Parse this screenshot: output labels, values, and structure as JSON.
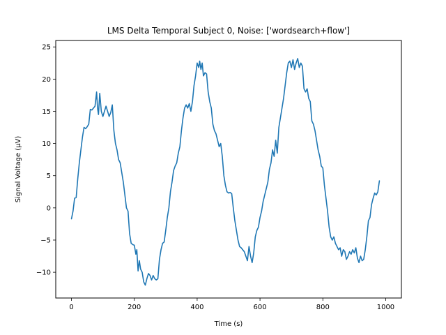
{
  "chart_data": {
    "type": "line",
    "title": "LMS Delta Temporal Subject 0, Noise: ['wordsearch+flow']",
    "xlabel": "Time (s)",
    "ylabel": "Signal Voltage (μV)",
    "xlim": [
      -50,
      1050
    ],
    "ylim": [
      -14,
      26
    ],
    "xticks": [
      0,
      200,
      400,
      600,
      800,
      1000
    ],
    "yticks": [
      -10,
      -5,
      0,
      5,
      10,
      15,
      20,
      25
    ],
    "grid": false,
    "series": [
      {
        "color": "#1f77b4",
        "points": [
          [
            0,
            -1.7
          ],
          [
            5,
            -0.5
          ],
          [
            10,
            1.5
          ],
          [
            15,
            1.6
          ],
          [
            20,
            4.5
          ],
          [
            25,
            7.0
          ],
          [
            30,
            9.0
          ],
          [
            35,
            11.0
          ],
          [
            40,
            12.5
          ],
          [
            45,
            12.3
          ],
          [
            50,
            12.6
          ],
          [
            55,
            13.0
          ],
          [
            60,
            15.3
          ],
          [
            65,
            15.2
          ],
          [
            70,
            15.5
          ],
          [
            75,
            15.8
          ],
          [
            80,
            18.0
          ],
          [
            83,
            15.5
          ],
          [
            86,
            14.5
          ],
          [
            90,
            17.8
          ],
          [
            95,
            15.0
          ],
          [
            100,
            14.2
          ],
          [
            105,
            15.0
          ],
          [
            110,
            15.8
          ],
          [
            115,
            15.0
          ],
          [
            120,
            14.2
          ],
          [
            125,
            14.8
          ],
          [
            130,
            16.0
          ],
          [
            135,
            12.0
          ],
          [
            140,
            10.0
          ],
          [
            145,
            9.0
          ],
          [
            150,
            7.5
          ],
          [
            155,
            7.0
          ],
          [
            160,
            5.5
          ],
          [
            165,
            4.0
          ],
          [
            170,
            2.0
          ],
          [
            175,
            0.0
          ],
          [
            180,
            -0.5
          ],
          [
            185,
            -4.0
          ],
          [
            190,
            -5.5
          ],
          [
            195,
            -5.7
          ],
          [
            200,
            -5.8
          ],
          [
            205,
            -7.2
          ],
          [
            208,
            -6.5
          ],
          [
            212,
            -9.8
          ],
          [
            216,
            -8.2
          ],
          [
            220,
            -9.5
          ],
          [
            225,
            -10.0
          ],
          [
            230,
            -11.5
          ],
          [
            235,
            -12.0
          ],
          [
            240,
            -11.0
          ],
          [
            245,
            -10.2
          ],
          [
            250,
            -10.5
          ],
          [
            255,
            -11.2
          ],
          [
            260,
            -10.5
          ],
          [
            265,
            -11.0
          ],
          [
            270,
            -11.2
          ],
          [
            275,
            -11.0
          ],
          [
            280,
            -8.0
          ],
          [
            285,
            -6.5
          ],
          [
            290,
            -5.5
          ],
          [
            295,
            -5.3
          ],
          [
            300,
            -3.5
          ],
          [
            305,
            -1.5
          ],
          [
            310,
            0.0
          ],
          [
            315,
            2.5
          ],
          [
            320,
            4.0
          ],
          [
            325,
            5.8
          ],
          [
            330,
            6.5
          ],
          [
            335,
            7.0
          ],
          [
            340,
            8.5
          ],
          [
            345,
            9.5
          ],
          [
            350,
            12.0
          ],
          [
            355,
            14.0
          ],
          [
            360,
            15.5
          ],
          [
            365,
            16.0
          ],
          [
            370,
            15.5
          ],
          [
            375,
            16.2
          ],
          [
            380,
            15.0
          ],
          [
            385,
            16.5
          ],
          [
            390,
            19.0
          ],
          [
            395,
            20.5
          ],
          [
            400,
            22.5
          ],
          [
            405,
            21.8
          ],
          [
            408,
            22.8
          ],
          [
            412,
            21.5
          ],
          [
            416,
            22.5
          ],
          [
            420,
            20.5
          ],
          [
            425,
            21.0
          ],
          [
            430,
            20.8
          ],
          [
            435,
            18.0
          ],
          [
            440,
            16.5
          ],
          [
            445,
            15.5
          ],
          [
            450,
            13.0
          ],
          [
            455,
            12.0
          ],
          [
            460,
            11.5
          ],
          [
            465,
            10.5
          ],
          [
            470,
            9.5
          ],
          [
            475,
            10.0
          ],
          [
            480,
            8.0
          ],
          [
            485,
            5.0
          ],
          [
            490,
            3.5
          ],
          [
            495,
            2.5
          ],
          [
            500,
            2.3
          ],
          [
            505,
            2.4
          ],
          [
            510,
            2.2
          ],
          [
            515,
            0.0
          ],
          [
            520,
            -2.0
          ],
          [
            525,
            -3.5
          ],
          [
            530,
            -5.0
          ],
          [
            535,
            -6.0
          ],
          [
            540,
            -6.2
          ],
          [
            545,
            -6.5
          ],
          [
            550,
            -6.8
          ],
          [
            555,
            -7.5
          ],
          [
            560,
            -8.2
          ],
          [
            565,
            -6.0
          ],
          [
            570,
            -7.5
          ],
          [
            575,
            -8.5
          ],
          [
            580,
            -7.0
          ],
          [
            585,
            -4.5
          ],
          [
            590,
            -3.5
          ],
          [
            595,
            -3.0
          ],
          [
            600,
            -1.5
          ],
          [
            605,
            -0.5
          ],
          [
            610,
            1.0
          ],
          [
            615,
            2.0
          ],
          [
            620,
            3.0
          ],
          [
            625,
            4.0
          ],
          [
            630,
            6.0
          ],
          [
            635,
            7.0
          ],
          [
            640,
            9.0
          ],
          [
            645,
            8.0
          ],
          [
            650,
            10.5
          ],
          [
            655,
            8.5
          ],
          [
            660,
            12.5
          ],
          [
            665,
            14.0
          ],
          [
            670,
            15.5
          ],
          [
            675,
            17.0
          ],
          [
            680,
            19.0
          ],
          [
            685,
            21.0
          ],
          [
            690,
            22.5
          ],
          [
            695,
            22.8
          ],
          [
            700,
            21.8
          ],
          [
            705,
            23.0
          ],
          [
            710,
            21.5
          ],
          [
            715,
            22.5
          ],
          [
            720,
            23.2
          ],
          [
            725,
            21.8
          ],
          [
            730,
            22.5
          ],
          [
            735,
            22.0
          ],
          [
            740,
            18.5
          ],
          [
            745,
            18.0
          ],
          [
            750,
            18.5
          ],
          [
            755,
            17.0
          ],
          [
            760,
            16.5
          ],
          [
            765,
            13.5
          ],
          [
            770,
            13.0
          ],
          [
            775,
            12.0
          ],
          [
            780,
            10.5
          ],
          [
            785,
            9.0
          ],
          [
            790,
            8.0
          ],
          [
            795,
            6.5
          ],
          [
            800,
            6.2
          ],
          [
            805,
            3.5
          ],
          [
            810,
            1.5
          ],
          [
            815,
            -0.5
          ],
          [
            820,
            -3.0
          ],
          [
            825,
            -4.5
          ],
          [
            830,
            -5.0
          ],
          [
            835,
            -4.5
          ],
          [
            840,
            -5.5
          ],
          [
            845,
            -6.0
          ],
          [
            850,
            -6.5
          ],
          [
            855,
            -6.2
          ],
          [
            860,
            -7.5
          ],
          [
            865,
            -6.5
          ],
          [
            870,
            -6.8
          ],
          [
            875,
            -8.0
          ],
          [
            880,
            -7.5
          ],
          [
            885,
            -6.8
          ],
          [
            890,
            -7.2
          ],
          [
            895,
            -6.5
          ],
          [
            900,
            -7.0
          ],
          [
            905,
            -6.2
          ],
          [
            910,
            -7.8
          ],
          [
            915,
            -8.5
          ],
          [
            920,
            -7.5
          ],
          [
            925,
            -8.2
          ],
          [
            930,
            -8.0
          ],
          [
            935,
            -6.5
          ],
          [
            940,
            -4.5
          ],
          [
            945,
            -2.0
          ],
          [
            950,
            -1.5
          ],
          [
            955,
            0.5
          ],
          [
            960,
            1.5
          ],
          [
            965,
            2.3
          ],
          [
            970,
            2.0
          ],
          [
            975,
            2.5
          ],
          [
            980,
            4.2
          ]
        ]
      }
    ]
  }
}
